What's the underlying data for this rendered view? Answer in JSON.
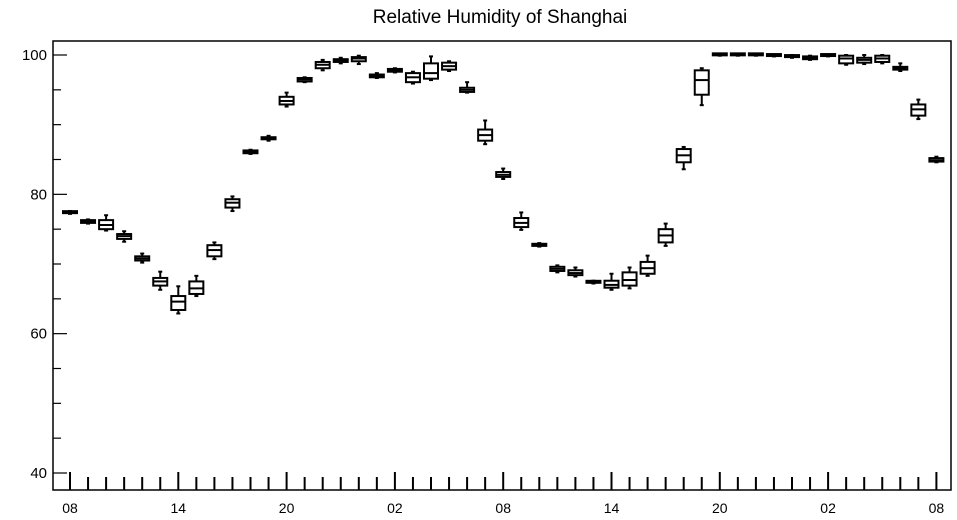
{
  "chart_data": {
    "type": "box",
    "title": "Relative Humidity of Shanghai",
    "xlabel": "",
    "ylabel": "",
    "ylim": [
      38,
      102
    ],
    "yticks": [
      40,
      60,
      80,
      100
    ],
    "grid": false,
    "x_tick_labels": [
      "08",
      "14",
      "20",
      "02",
      "08",
      "14",
      "20",
      "02",
      "08"
    ],
    "x_tick_hour_index": [
      0,
      6,
      12,
      18,
      24,
      30,
      36,
      42,
      48
    ],
    "hours": 49,
    "boxes": [
      {
        "hour": 0,
        "min": 77.2,
        "q1": 77.3,
        "median": 77.4,
        "q3": 77.5,
        "max": 77.6
      },
      {
        "hour": 1,
        "min": 75.8,
        "q1": 75.9,
        "median": 76.1,
        "q3": 76.3,
        "max": 76.4
      },
      {
        "hour": 2,
        "min": 74.8,
        "q1": 75.0,
        "median": 75.6,
        "q3": 76.3,
        "max": 77.0
      },
      {
        "hour": 3,
        "min": 73.2,
        "q1": 73.6,
        "median": 74.0,
        "q3": 74.3,
        "max": 74.7
      },
      {
        "hour": 4,
        "min": 70.2,
        "q1": 70.5,
        "median": 70.8,
        "q3": 71.1,
        "max": 71.5
      },
      {
        "hour": 5,
        "min": 66.3,
        "q1": 66.9,
        "median": 67.5,
        "q3": 68.0,
        "max": 68.9
      },
      {
        "hour": 6,
        "min": 62.9,
        "q1": 63.4,
        "median": 64.6,
        "q3": 65.4,
        "max": 66.8
      },
      {
        "hour": 7,
        "min": 65.4,
        "q1": 65.7,
        "median": 66.5,
        "q3": 67.5,
        "max": 68.3
      },
      {
        "hour": 8,
        "min": 70.7,
        "q1": 71.1,
        "median": 72.0,
        "q3": 72.7,
        "max": 73.1
      },
      {
        "hour": 9,
        "min": 77.6,
        "q1": 78.1,
        "median": 78.8,
        "q3": 79.3,
        "max": 79.7
      },
      {
        "hour": 10,
        "min": 85.8,
        "q1": 85.9,
        "median": 86.1,
        "q3": 86.3,
        "max": 86.4
      },
      {
        "hour": 11,
        "min": 87.7,
        "q1": 87.9,
        "median": 88.1,
        "q3": 88.2,
        "max": 88.4
      },
      {
        "hour": 12,
        "min": 92.6,
        "q1": 92.9,
        "median": 93.4,
        "q3": 94.0,
        "max": 94.6
      },
      {
        "hour": 13,
        "min": 96.1,
        "q1": 96.2,
        "median": 96.5,
        "q3": 96.7,
        "max": 96.8
      },
      {
        "hour": 14,
        "min": 97.8,
        "q1": 98.1,
        "median": 98.6,
        "q3": 99.0,
        "max": 99.3
      },
      {
        "hour": 15,
        "min": 98.8,
        "q1": 99.0,
        "median": 99.2,
        "q3": 99.4,
        "max": 99.6
      },
      {
        "hour": 16,
        "min": 98.7,
        "q1": 99.1,
        "median": 99.5,
        "q3": 99.7,
        "max": 99.9
      },
      {
        "hour": 17,
        "min": 96.7,
        "q1": 96.8,
        "median": 97.0,
        "q3": 97.2,
        "max": 97.4
      },
      {
        "hour": 18,
        "min": 97.5,
        "q1": 97.6,
        "median": 97.8,
        "q3": 98.0,
        "max": 98.1
      },
      {
        "hour": 19,
        "min": 95.9,
        "q1": 96.1,
        "median": 96.8,
        "q3": 97.4,
        "max": 97.6
      },
      {
        "hour": 20,
        "min": 96.4,
        "q1": 96.6,
        "median": 97.4,
        "q3": 98.8,
        "max": 99.8
      },
      {
        "hour": 21,
        "min": 97.7,
        "q1": 97.9,
        "median": 98.4,
        "q3": 98.9,
        "max": 99.1
      },
      {
        "hour": 22,
        "min": 94.6,
        "q1": 94.7,
        "median": 95.0,
        "q3": 95.3,
        "max": 96.1
      },
      {
        "hour": 23,
        "min": 87.2,
        "q1": 87.7,
        "median": 88.5,
        "q3": 89.3,
        "max": 90.6
      },
      {
        "hour": 24,
        "min": 82.2,
        "q1": 82.5,
        "median": 82.8,
        "q3": 83.2,
        "max": 83.7
      },
      {
        "hour": 25,
        "min": 74.9,
        "q1": 75.3,
        "median": 75.9,
        "q3": 76.6,
        "max": 77.4
      },
      {
        "hour": 26,
        "min": 72.5,
        "q1": 72.6,
        "median": 72.8,
        "q3": 72.9,
        "max": 73.0
      },
      {
        "hour": 27,
        "min": 68.8,
        "q1": 69.0,
        "median": 69.3,
        "q3": 69.6,
        "max": 69.8
      },
      {
        "hour": 28,
        "min": 68.2,
        "q1": 68.4,
        "median": 68.7,
        "q3": 69.1,
        "max": 69.5
      },
      {
        "hour": 29,
        "min": 67.2,
        "q1": 67.3,
        "median": 67.4,
        "q3": 67.5,
        "max": 67.6
      },
      {
        "hour": 30,
        "min": 66.3,
        "q1": 66.6,
        "median": 67.0,
        "q3": 67.6,
        "max": 68.6
      },
      {
        "hour": 31,
        "min": 66.5,
        "q1": 66.9,
        "median": 67.7,
        "q3": 68.8,
        "max": 69.5
      },
      {
        "hour": 32,
        "min": 68.3,
        "q1": 68.6,
        "median": 69.4,
        "q3": 70.3,
        "max": 71.2
      },
      {
        "hour": 33,
        "min": 72.6,
        "q1": 73.1,
        "median": 74.1,
        "q3": 75.0,
        "max": 75.8
      },
      {
        "hour": 34,
        "min": 83.6,
        "q1": 84.6,
        "median": 85.6,
        "q3": 86.5,
        "max": 86.8
      },
      {
        "hour": 35,
        "min": 92.8,
        "q1": 94.3,
        "median": 96.4,
        "q3": 97.8,
        "max": 98.1
      },
      {
        "hour": 36,
        "min": 99.9,
        "q1": 99.95,
        "median": 100.0,
        "q3": 100.0,
        "max": 100.0
      },
      {
        "hour": 37,
        "min": 99.9,
        "q1": 99.95,
        "median": 100.0,
        "q3": 100.0,
        "max": 100.0
      },
      {
        "hour": 38,
        "min": 99.9,
        "q1": 99.95,
        "median": 100.0,
        "q3": 100.0,
        "max": 100.0
      },
      {
        "hour": 39,
        "min": 99.8,
        "q1": 99.85,
        "median": 99.9,
        "q3": 100.0,
        "max": 100.0
      },
      {
        "hour": 40,
        "min": 99.6,
        "q1": 99.7,
        "median": 99.8,
        "q3": 99.9,
        "max": 100.0
      },
      {
        "hour": 41,
        "min": 99.3,
        "q1": 99.4,
        "median": 99.6,
        "q3": 99.8,
        "max": 99.9
      },
      {
        "hour": 42,
        "min": 99.8,
        "q1": 99.85,
        "median": 99.9,
        "q3": 100.0,
        "max": 100.0
      },
      {
        "hour": 43,
        "min": 98.6,
        "q1": 98.8,
        "median": 99.5,
        "q3": 99.9,
        "max": 100.0
      },
      {
        "hour": 44,
        "min": 98.7,
        "q1": 98.9,
        "median": 99.3,
        "q3": 99.6,
        "max": 100.0
      },
      {
        "hour": 45,
        "min": 98.8,
        "q1": 99.0,
        "median": 99.5,
        "q3": 99.9,
        "max": 100.0
      },
      {
        "hour": 46,
        "min": 97.7,
        "q1": 97.9,
        "median": 98.1,
        "q3": 98.3,
        "max": 98.8
      },
      {
        "hour": 47,
        "min": 90.8,
        "q1": 91.3,
        "median": 92.2,
        "q3": 92.9,
        "max": 93.6
      },
      {
        "hour": 48,
        "min": 84.6,
        "q1": 84.7,
        "median": 84.9,
        "q3": 85.2,
        "max": 85.4
      }
    ]
  }
}
